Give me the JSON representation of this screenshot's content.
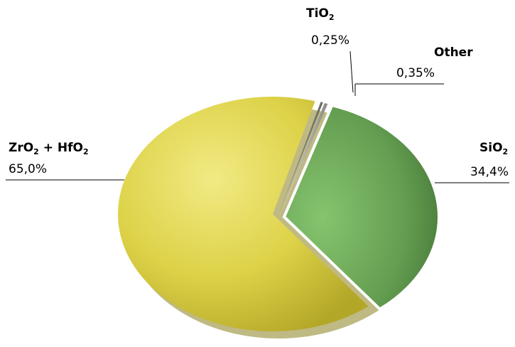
{
  "chart_data": {
    "type": "pie",
    "title": "",
    "exploded": true,
    "three_d": true,
    "slices": [
      {
        "name": "ZrO",
        "sub1": "2",
        "joiner": " + HfO",
        "sub2": "2",
        "value_label": "65,0%",
        "value": 65.0,
        "color": "#e2d64c"
      },
      {
        "name": "SiO",
        "sub1": "2",
        "joiner": "",
        "sub2": "",
        "value_label": "34,4%",
        "value": 34.4,
        "color": "#6aa356"
      },
      {
        "name": "Other",
        "sub1": "",
        "joiner": "",
        "sub2": "",
        "value_label": "0,35%",
        "value": 0.35,
        "color": "#c8c8be"
      },
      {
        "name": "TiO",
        "sub1": "2",
        "joiner": "",
        "sub2": "",
        "value_label": "0,25%",
        "value": 0.25,
        "color": "#9a9a90"
      }
    ]
  }
}
